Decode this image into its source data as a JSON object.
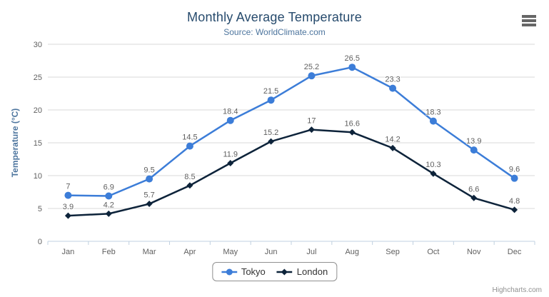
{
  "header": {
    "title": "Monthly Average Temperature",
    "subtitle": "Source: WorldClimate.com"
  },
  "icons": {
    "context_menu": "hamburger-menu-icon"
  },
  "credits": {
    "label": "Highcharts.com"
  },
  "chart_data": {
    "type": "line",
    "title": "Monthly Average Temperature",
    "subtitle": "Source: WorldClimate.com",
    "categories": [
      "Jan",
      "Feb",
      "Mar",
      "Apr",
      "May",
      "Jun",
      "Jul",
      "Aug",
      "Sep",
      "Oct",
      "Nov",
      "Dec"
    ],
    "series": [
      {
        "name": "Tokyo",
        "color": "#3c7dd8",
        "marker": "circle",
        "values": [
          7,
          6.9,
          9.5,
          14.5,
          18.4,
          21.5,
          25.2,
          26.5,
          23.3,
          18.3,
          13.9,
          9.6
        ]
      },
      {
        "name": "London",
        "color": "#0d233a",
        "marker": "diamond",
        "values": [
          3.9,
          4.2,
          5.7,
          8.5,
          11.9,
          15.2,
          17,
          16.6,
          14.2,
          10.3,
          6.6,
          4.8
        ]
      }
    ],
    "xlabel": "",
    "ylabel": "Temperature (°C)",
    "ylim": [
      0,
      30
    ],
    "yticks": [
      0,
      5,
      10,
      15,
      20,
      25,
      30
    ],
    "grid": true,
    "legend_position": "bottom",
    "colors": {
      "title": "#274b6d",
      "subtitle": "#4d759e",
      "gridline": "#d8d8d8",
      "axis_line": "#c0d0e0",
      "axis_label": "#606060",
      "data_label": "#606060"
    }
  }
}
